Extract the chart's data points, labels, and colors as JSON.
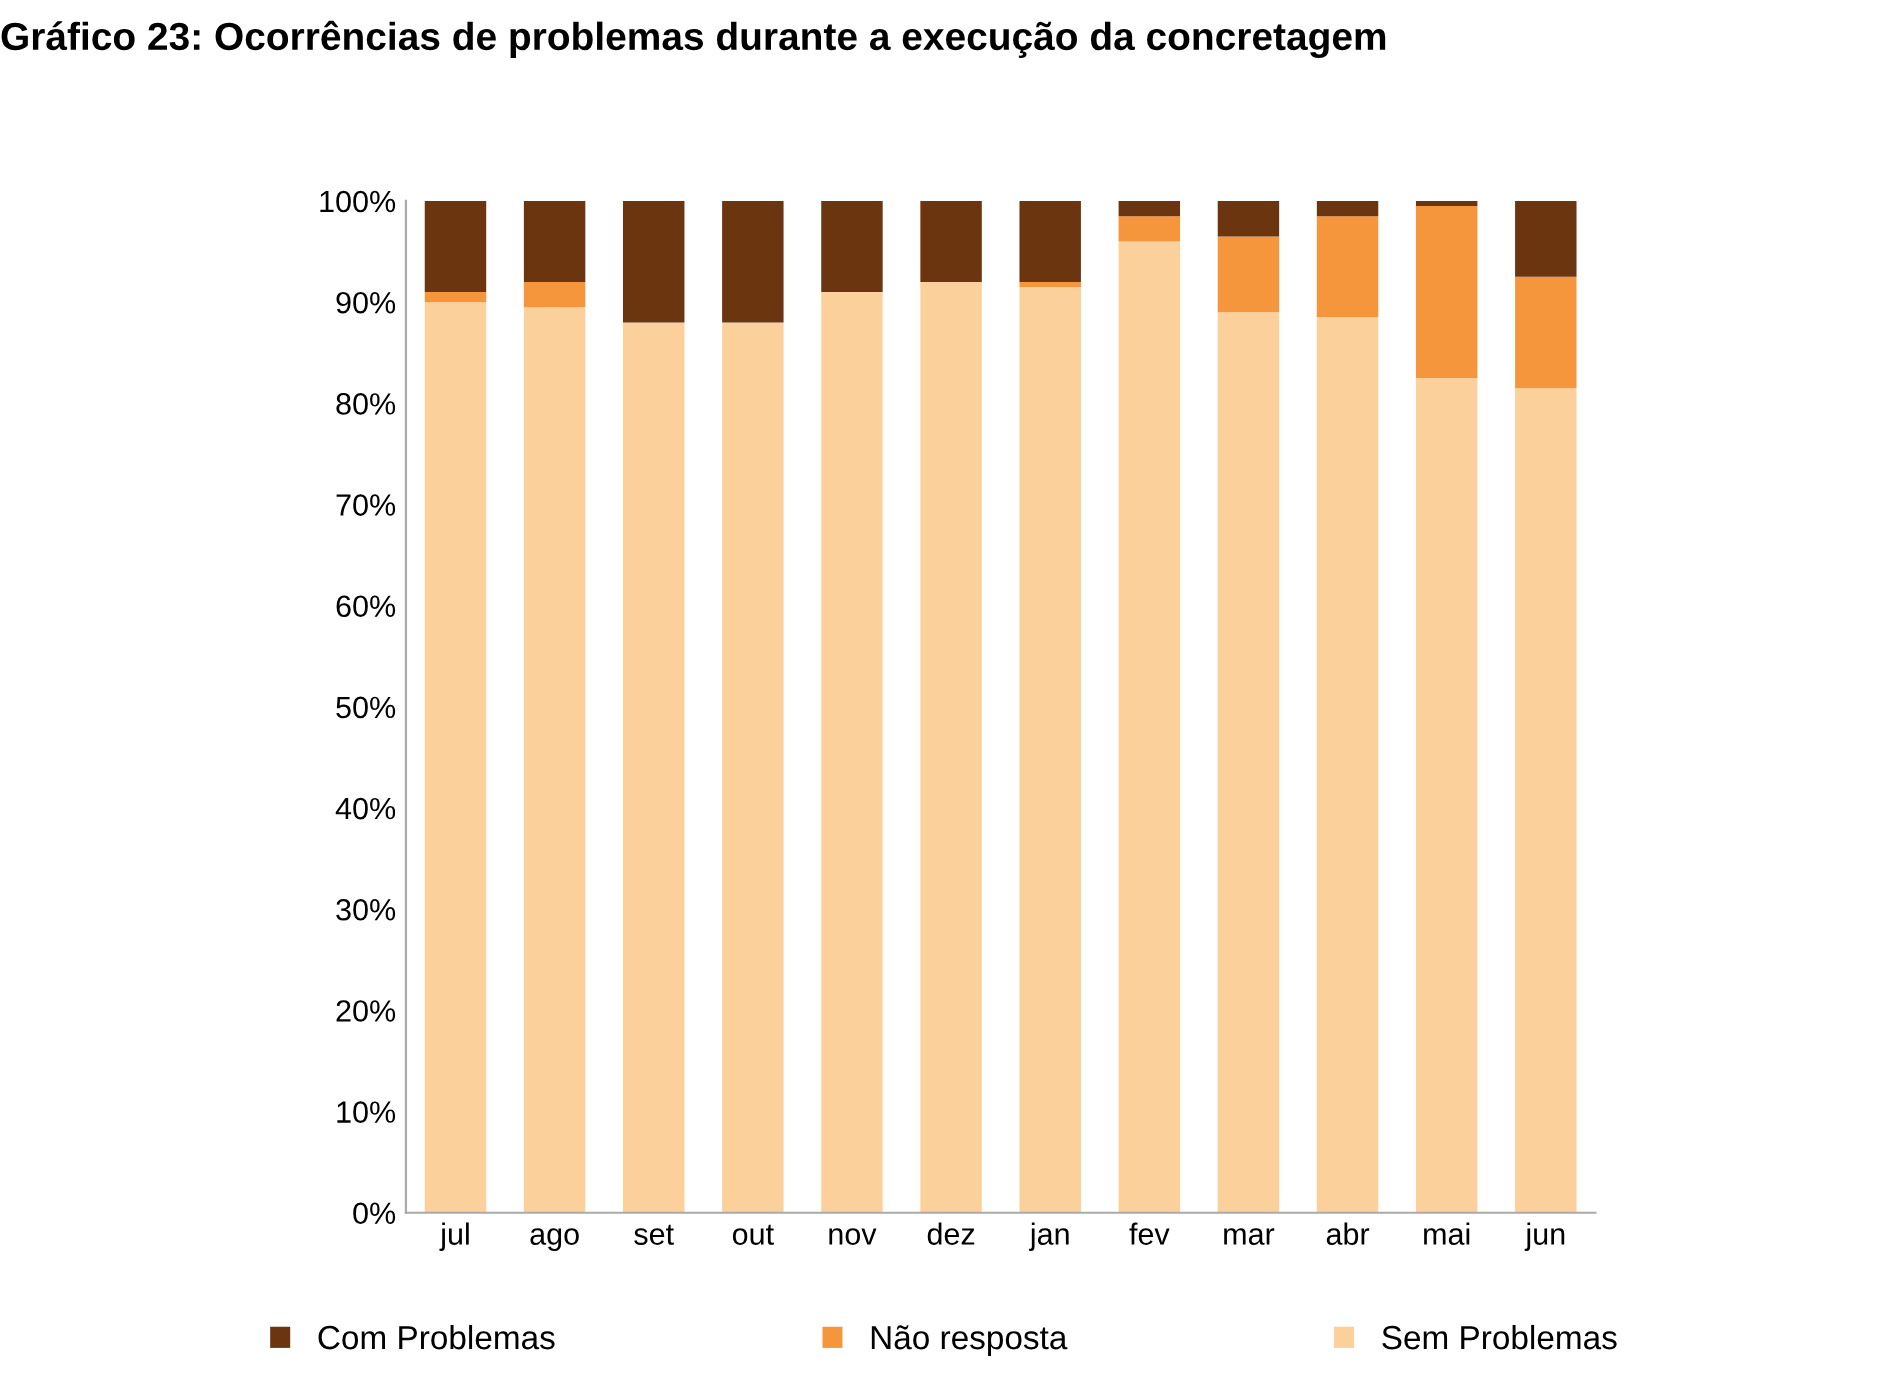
{
  "chart_data": {
    "type": "bar",
    "title": "Gráfico 23: Ocorrências de problemas durante a execução da concretagem",
    "categories": [
      "jul",
      "ago",
      "set",
      "out",
      "nov",
      "dez",
      "jan",
      "fev",
      "mar",
      "abr",
      "mai",
      "jun"
    ],
    "stacked": true,
    "series": [
      {
        "name": "Sem Problemas",
        "color": "#fbd09a",
        "values": [
          90,
          89.5,
          88,
          88,
          91,
          92,
          91.5,
          96,
          89,
          88.5,
          82.5,
          81.5
        ]
      },
      {
        "name": "Não resposta",
        "color": "#f5963c",
        "values": [
          1,
          2.5,
          0,
          0,
          0,
          0,
          0.5,
          2.5,
          7.5,
          10,
          17,
          11
        ]
      },
      {
        "name": "Com Problemas",
        "color": "#6b3510",
        "values": [
          9,
          8,
          12,
          12,
          9,
          8,
          8,
          1.5,
          3.5,
          1.5,
          0.5,
          7.5
        ]
      }
    ],
    "ylim": [
      0,
      100
    ],
    "yticks": [
      {
        "value": 0,
        "label": "0%"
      },
      {
        "value": 10,
        "label": "10%"
      },
      {
        "value": 20,
        "label": "20%"
      },
      {
        "value": 30,
        "label": "30%"
      },
      {
        "value": 40,
        "label": "40%"
      },
      {
        "value": 50,
        "label": "50%"
      },
      {
        "value": 60,
        "label": "60%"
      },
      {
        "value": 70,
        "label": "70%"
      },
      {
        "value": 80,
        "label": "80%"
      },
      {
        "value": 90,
        "label": "90%"
      },
      {
        "value": 100,
        "label": "100%"
      }
    ],
    "grid": false,
    "legend": "bottom"
  }
}
